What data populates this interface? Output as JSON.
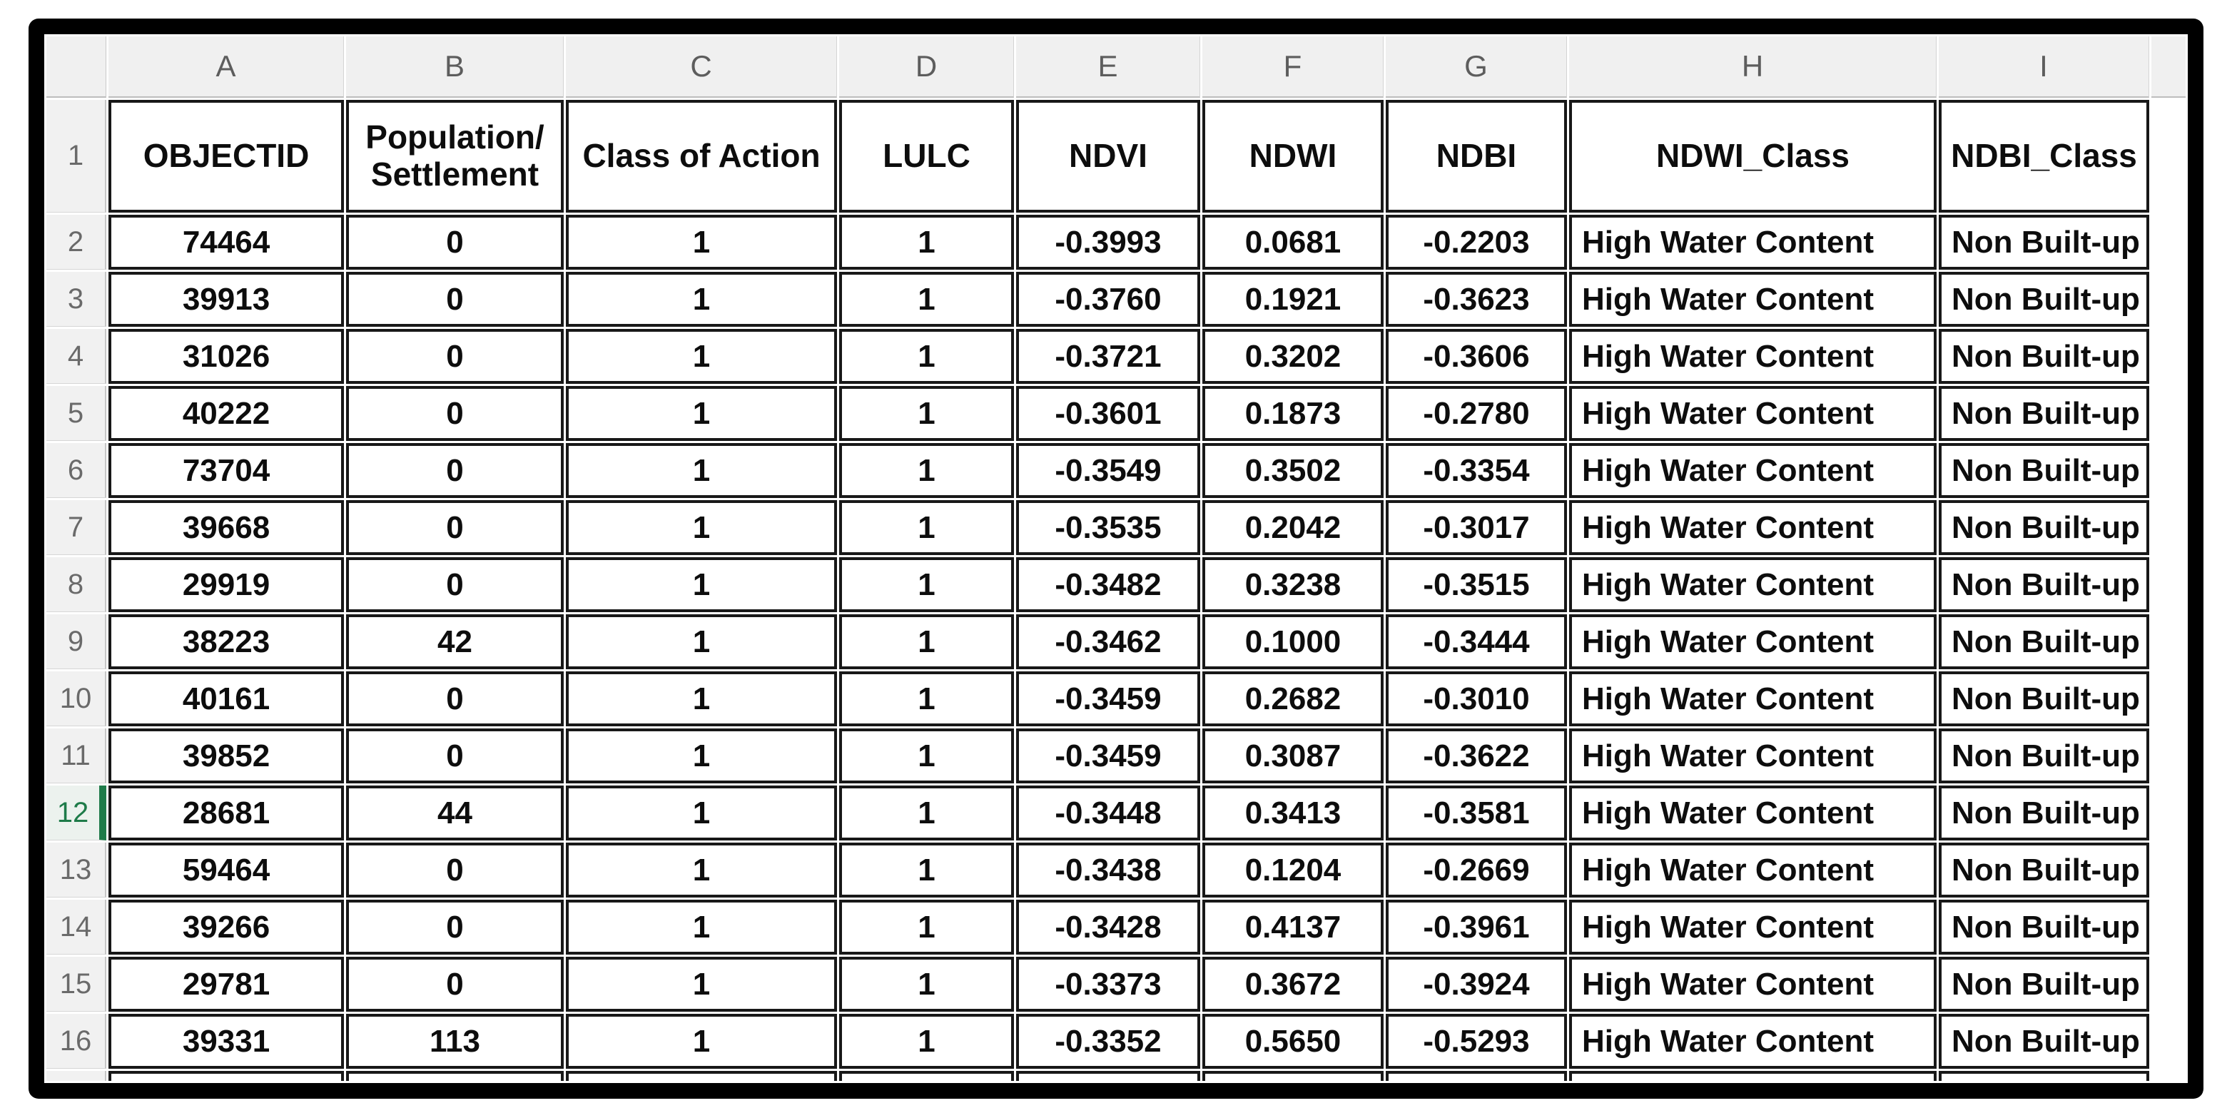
{
  "sheet": {
    "select_all": "",
    "column_letters": [
      "A",
      "B",
      "C",
      "D",
      "E",
      "F",
      "G",
      "H",
      "I"
    ],
    "extra_column_letter": "",
    "header_row": {
      "number": "1",
      "cells": [
        "OBJECTID",
        "Population/\nSettlement",
        "Class of Action",
        "LULC",
        "NDVI",
        "NDWI",
        "NDBI",
        "NDWI_Class",
        "NDBI_Class"
      ]
    },
    "rows": [
      {
        "number": "2",
        "cells": [
          "74464",
          "0",
          "1",
          "1",
          "-0.3993",
          "0.0681",
          "-0.2203",
          "High Water Content",
          "Non Built-up"
        ]
      },
      {
        "number": "3",
        "cells": [
          "39913",
          "0",
          "1",
          "1",
          "-0.3760",
          "0.1921",
          "-0.3623",
          "High Water Content",
          "Non Built-up"
        ]
      },
      {
        "number": "4",
        "cells": [
          "31026",
          "0",
          "1",
          "1",
          "-0.3721",
          "0.3202",
          "-0.3606",
          "High Water Content",
          "Non Built-up"
        ]
      },
      {
        "number": "5",
        "cells": [
          "40222",
          "0",
          "1",
          "1",
          "-0.3601",
          "0.1873",
          "-0.2780",
          "High Water Content",
          "Non Built-up"
        ]
      },
      {
        "number": "6",
        "cells": [
          "73704",
          "0",
          "1",
          "1",
          "-0.3549",
          "0.3502",
          "-0.3354",
          "High Water Content",
          "Non Built-up"
        ]
      },
      {
        "number": "7",
        "cells": [
          "39668",
          "0",
          "1",
          "1",
          "-0.3535",
          "0.2042",
          "-0.3017",
          "High Water Content",
          "Non Built-up"
        ]
      },
      {
        "number": "8",
        "cells": [
          "29919",
          "0",
          "1",
          "1",
          "-0.3482",
          "0.3238",
          "-0.3515",
          "High Water Content",
          "Non Built-up"
        ]
      },
      {
        "number": "9",
        "cells": [
          "38223",
          "42",
          "1",
          "1",
          "-0.3462",
          "0.1000",
          "-0.3444",
          "High Water Content",
          "Non Built-up"
        ]
      },
      {
        "number": "10",
        "cells": [
          "40161",
          "0",
          "1",
          "1",
          "-0.3459",
          "0.2682",
          "-0.3010",
          "High Water Content",
          "Non Built-up"
        ]
      },
      {
        "number": "11",
        "cells": [
          "39852",
          "0",
          "1",
          "1",
          "-0.3459",
          "0.3087",
          "-0.3622",
          "High Water Content",
          "Non Built-up"
        ]
      },
      {
        "number": "12",
        "cells": [
          "28681",
          "44",
          "1",
          "1",
          "-0.3448",
          "0.3413",
          "-0.3581",
          "High Water Content",
          "Non Built-up"
        ]
      },
      {
        "number": "13",
        "cells": [
          "59464",
          "0",
          "1",
          "1",
          "-0.3438",
          "0.1204",
          "-0.2669",
          "High Water Content",
          "Non Built-up"
        ]
      },
      {
        "number": "14",
        "cells": [
          "39266",
          "0",
          "1",
          "1",
          "-0.3428",
          "0.4137",
          "-0.3961",
          "High Water Content",
          "Non Built-up"
        ]
      },
      {
        "number": "15",
        "cells": [
          "29781",
          "0",
          "1",
          "1",
          "-0.3373",
          "0.3672",
          "-0.3924",
          "High Water Content",
          "Non Built-up"
        ]
      },
      {
        "number": "16",
        "cells": [
          "39331",
          "113",
          "1",
          "1",
          "-0.3352",
          "0.5650",
          "-0.5293",
          "High Water Content",
          "Non Built-up"
        ]
      }
    ],
    "active_row_number": "12",
    "trailing_row_number": "",
    "colors": {
      "active_row_green": "#1e7b49",
      "cell_border_black": "#181818",
      "chrome_gray": "#f0f0f0"
    }
  }
}
